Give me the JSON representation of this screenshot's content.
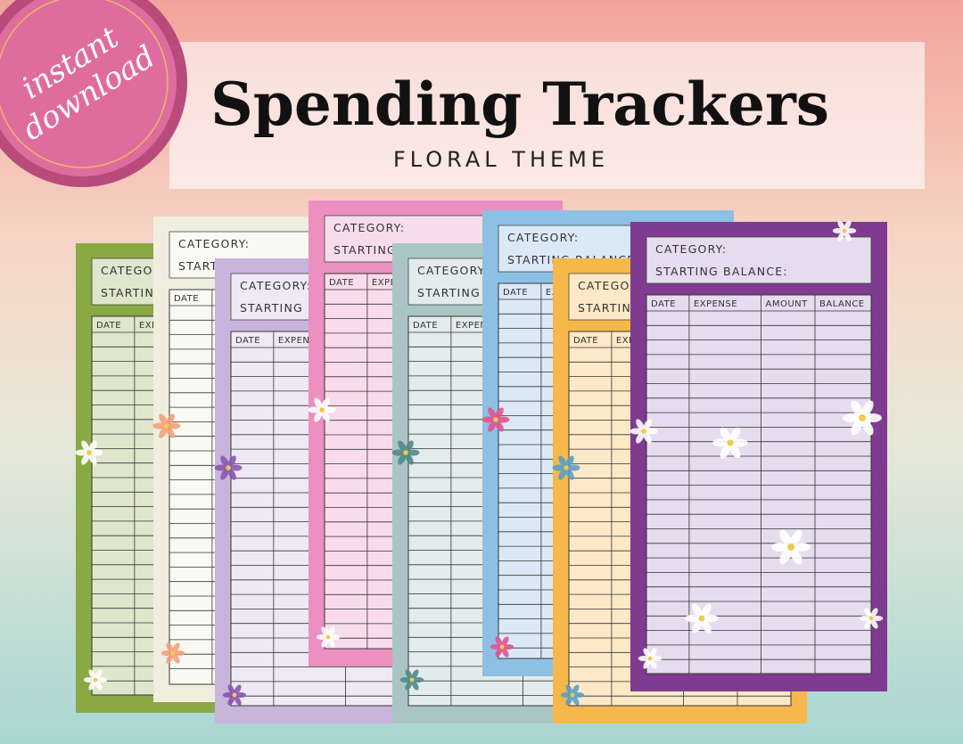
{
  "badge": {
    "line1": "instant",
    "line2": "download"
  },
  "header": {
    "title": "Spending Trackers",
    "subtitle": "FLORAL THEME"
  },
  "tracker": {
    "category": "CATEGORY:",
    "starting_balance": "STARTING BALANCE:",
    "columns": [
      "DATE",
      "EXPENSE",
      "AMOUNT",
      "BALANCE"
    ]
  }
}
